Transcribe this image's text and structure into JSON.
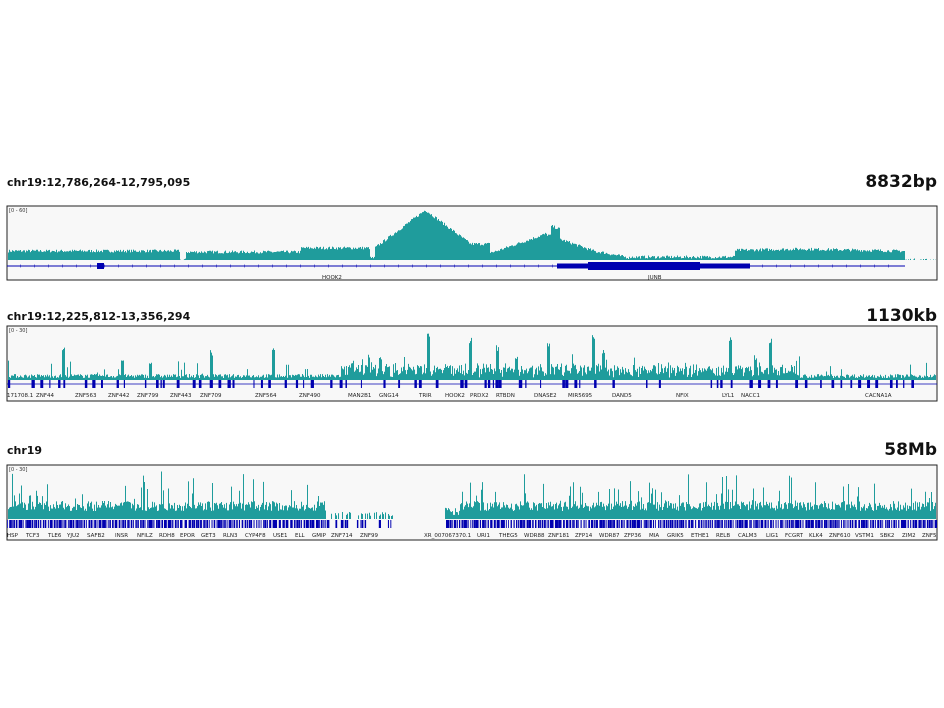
{
  "panels": [
    {
      "locus": "chr19:12,786,264-12,795,095",
      "size": "8832bp",
      "range": "[0 - 60]",
      "genes": [
        "HOOK2",
        "JUNB"
      ]
    },
    {
      "locus": "chr19:12,225,812-13,356,294",
      "size": "1130kb",
      "range": "[0 - 30]",
      "genes": [
        "171708.1",
        "ZNF44",
        "ZNF563",
        "ZNF442",
        "ZNF799",
        "ZNF443",
        "ZNF709",
        "ZNF564",
        "ZNF490",
        "MAN2B1",
        "GNG14",
        "TRIR",
        "HOOK2",
        "PRDX2",
        "RTBDN",
        "DNASE2",
        "MIR5695",
        "DAND5",
        "NFIX",
        "LYL1",
        "NACC1",
        "CACNA1A"
      ]
    },
    {
      "locus": "chr19",
      "size": "58Mb",
      "range": "[0 - 30]",
      "genes": [
        "HSP",
        "TCF3",
        "TLE6",
        "YJU2",
        "SAFB2",
        "INSR",
        "NFILZ",
        "RDH8",
        "EPOR",
        "GET3",
        "RLN3",
        "CYP4F8",
        "USE1",
        "ELL",
        "GMIP",
        "ZNF714",
        "ZNF99",
        "XR_007067370.1",
        "URI1",
        "THEG5",
        "WDR88",
        "ZNF181",
        "ZFP14",
        "WDR87",
        "ZFP36",
        "MIA",
        "GRIK5",
        "ETHE1",
        "RELB",
        "CALM3",
        "LIG1",
        "FCGRT",
        "KLK4",
        "ZNF610",
        "VSTM1",
        "SBK2",
        "ZIM2",
        "ZNF5"
      ]
    }
  ]
}
